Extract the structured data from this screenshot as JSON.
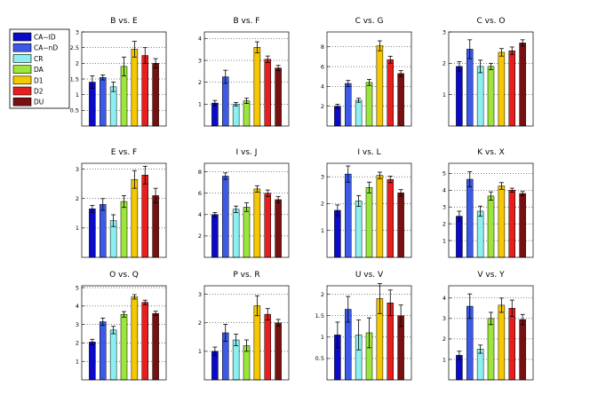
{
  "figure": "Grouped comparison bar charts",
  "legend": {
    "entries": [
      {
        "label": "CA−ID",
        "color": "#0a0ac8"
      },
      {
        "label": "CA−nD",
        "color": "#3c5ae6"
      },
      {
        "label": "CR",
        "color": "#8cf0f0"
      },
      {
        "label": "DA",
        "color": "#9ce63c"
      },
      {
        "label": "D1",
        "color": "#f5c800"
      },
      {
        "label": "D2",
        "color": "#e61e1e"
      },
      {
        "label": "DU",
        "color": "#781010"
      }
    ]
  },
  "chart_data": [
    {
      "type": "bar",
      "title": "B vs. E",
      "categories": [
        "CA−ID",
        "CA−nD",
        "CR",
        "DA",
        "D1",
        "D2",
        "DU"
      ],
      "values": [
        1.4,
        1.55,
        1.25,
        1.9,
        2.45,
        2.25,
        2.0
      ],
      "errors": [
        0.2,
        0.08,
        0.15,
        0.3,
        0.25,
        0.25,
        0.15
      ],
      "yticks": [
        "0.5",
        "1",
        "1.5",
        "2",
        "2.5",
        "3"
      ],
      "ylim": [
        0,
        3
      ]
    },
    {
      "type": "bar",
      "title": "B vs. F",
      "categories": [
        "CA−ID",
        "CA−nD",
        "CR",
        "DA",
        "D1",
        "D2",
        "DU"
      ],
      "values": [
        1.05,
        2.25,
        1.0,
        1.15,
        3.6,
        3.05,
        2.65
      ],
      "errors": [
        0.12,
        0.3,
        0.08,
        0.12,
        0.25,
        0.15,
        0.12
      ],
      "yticks": [
        "1",
        "2",
        "3",
        "4"
      ],
      "ylim": [
        0,
        4.3
      ]
    },
    {
      "type": "bar",
      "title": "C vs. G",
      "categories": [
        "CA−ID",
        "CA−nD",
        "CR",
        "DA",
        "D1",
        "D2",
        "DU"
      ],
      "values": [
        2.0,
        4.3,
        2.6,
        4.4,
        8.1,
        6.7,
        5.3
      ],
      "errors": [
        0.2,
        0.3,
        0.2,
        0.3,
        0.5,
        0.35,
        0.3
      ],
      "yticks": [
        "2",
        "4",
        "6",
        "8"
      ],
      "ylim": [
        0,
        9.5
      ]
    },
    {
      "type": "bar",
      "title": "C vs. O",
      "categories": [
        "CA−ID",
        "CA−nD",
        "CR",
        "DA",
        "D1",
        "D2",
        "DU"
      ],
      "values": [
        1.9,
        2.45,
        1.9,
        1.9,
        2.35,
        2.4,
        2.65
      ],
      "errors": [
        0.15,
        0.3,
        0.2,
        0.1,
        0.12,
        0.12,
        0.1
      ],
      "yticks": [
        "1",
        "2",
        "3"
      ],
      "ylim": [
        0,
        3
      ]
    },
    {
      "type": "bar",
      "title": "E vs. F",
      "categories": [
        "CA−ID",
        "CA−nD",
        "CR",
        "DA",
        "D1",
        "D2",
        "DU"
      ],
      "values": [
        1.65,
        1.8,
        1.25,
        1.9,
        2.65,
        2.8,
        2.1
      ],
      "errors": [
        0.12,
        0.2,
        0.2,
        0.2,
        0.3,
        0.3,
        0.25
      ],
      "yticks": [
        "1",
        "2",
        "3"
      ],
      "ylim": [
        0,
        3.2
      ]
    },
    {
      "type": "bar",
      "title": "I vs. J",
      "categories": [
        "CA−ID",
        "CA−nD",
        "CR",
        "DA",
        "D1",
        "D2",
        "DU"
      ],
      "values": [
        4.0,
        7.6,
        4.5,
        4.7,
        6.4,
        6.0,
        5.4
      ],
      "errors": [
        0.2,
        0.3,
        0.3,
        0.4,
        0.3,
        0.3,
        0.3
      ],
      "yticks": [
        "2",
        "4",
        "6",
        "8"
      ],
      "ylim": [
        0,
        8.8
      ]
    },
    {
      "type": "bar",
      "title": "I vs. L",
      "categories": [
        "CA−ID",
        "CA−nD",
        "CR",
        "DA",
        "D1",
        "D2",
        "DU"
      ],
      "values": [
        1.75,
        3.1,
        2.1,
        2.6,
        3.05,
        2.9,
        2.4
      ],
      "errors": [
        0.2,
        0.3,
        0.2,
        0.2,
        0.12,
        0.12,
        0.12
      ],
      "yticks": [
        "1",
        "2",
        "3"
      ],
      "ylim": [
        0,
        3.5
      ]
    },
    {
      "type": "bar",
      "title": "K vs. X",
      "categories": [
        "CA−ID",
        "CA−nD",
        "CR",
        "DA",
        "D1",
        "D2",
        "DU"
      ],
      "values": [
        2.45,
        4.65,
        2.75,
        3.65,
        4.25,
        4.0,
        3.8
      ],
      "errors": [
        0.3,
        0.45,
        0.3,
        0.25,
        0.2,
        0.12,
        0.12
      ],
      "yticks": [
        "1",
        "2",
        "3",
        "4",
        "5"
      ],
      "ylim": [
        0,
        5.6
      ]
    },
    {
      "type": "bar",
      "title": "O vs. Q",
      "categories": [
        "CA−ID",
        "CA−nD",
        "CR",
        "DA",
        "D1",
        "D2",
        "DU"
      ],
      "values": [
        2.05,
        3.15,
        2.7,
        3.55,
        4.5,
        4.2,
        3.6
      ],
      "errors": [
        0.15,
        0.2,
        0.2,
        0.15,
        0.12,
        0.12,
        0.12
      ],
      "yticks": [
        "1",
        "2",
        "3",
        "4",
        "5"
      ],
      "ylim": [
        0,
        5.1
      ]
    },
    {
      "type": "bar",
      "title": "P vs. R",
      "categories": [
        "CA−ID",
        "CA−nD",
        "CR",
        "DA",
        "D1",
        "D2",
        "DU"
      ],
      "values": [
        1.0,
        1.65,
        1.4,
        1.2,
        2.6,
        2.3,
        2.0
      ],
      "errors": [
        0.15,
        0.3,
        0.2,
        0.2,
        0.35,
        0.2,
        0.12
      ],
      "yticks": [
        "1",
        "2",
        "3"
      ],
      "ylim": [
        0,
        3.3
      ]
    },
    {
      "type": "bar",
      "title": "U vs. V",
      "categories": [
        "CA−ID",
        "CA−nD",
        "CR",
        "DA",
        "D1",
        "D2",
        "DU"
      ],
      "values": [
        1.05,
        1.65,
        1.05,
        1.1,
        1.9,
        1.8,
        1.5
      ],
      "errors": [
        0.3,
        0.3,
        0.35,
        0.35,
        0.35,
        0.3,
        0.25
      ],
      "yticks": [
        "0.5",
        "1",
        "1.5",
        "2"
      ],
      "ylim": [
        0,
        2.2
      ]
    },
    {
      "type": "bar",
      "title": "V vs. Y",
      "categories": [
        "CA−ID",
        "CA−nD",
        "CR",
        "DA",
        "D1",
        "D2",
        "DU"
      ],
      "values": [
        1.2,
        3.6,
        1.5,
        3.0,
        3.65,
        3.5,
        2.95
      ],
      "errors": [
        0.2,
        0.6,
        0.2,
        0.3,
        0.35,
        0.4,
        0.25
      ],
      "yticks": [
        "1",
        "2",
        "3",
        "4"
      ],
      "ylim": [
        0,
        4.6
      ]
    }
  ]
}
